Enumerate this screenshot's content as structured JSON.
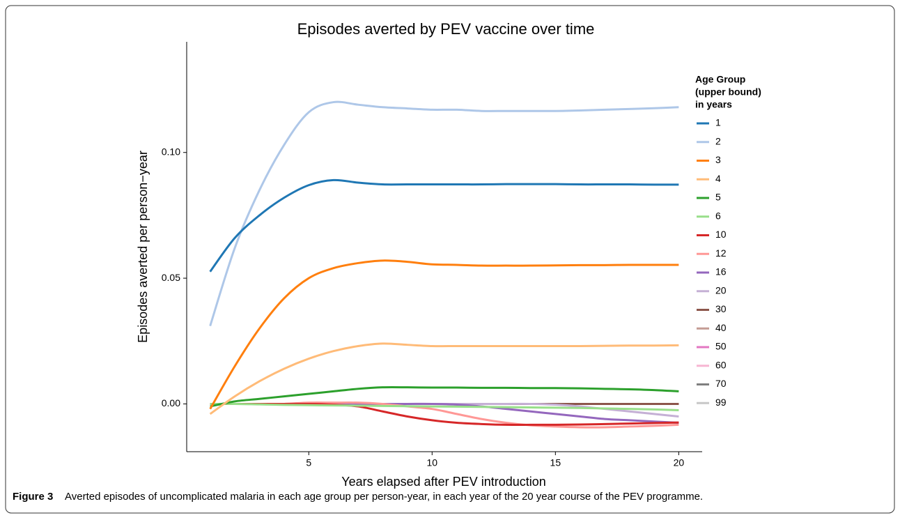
{
  "chart_data": {
    "type": "line",
    "title": "Episodes averted by PEV vaccine over time",
    "x_label": "Years elapsed after PEV introduction",
    "y_label": "Episodes averted per person−year",
    "legend_title": [
      "Age Group",
      "(upper bound)",
      "in years"
    ],
    "legend_position": "right",
    "x": [
      1,
      2,
      3,
      4,
      5,
      6,
      7,
      8,
      9,
      10,
      11,
      12,
      13,
      14,
      15,
      16,
      17,
      18,
      19,
      20
    ],
    "xlim": [
      0.05,
      20.95
    ],
    "xticks": [
      5,
      10,
      15,
      20
    ],
    "ylim": [
      -0.019,
      0.144
    ],
    "yticks": [
      {
        "value": 0,
        "label": "0.00"
      },
      {
        "value": 0.05,
        "label": "0.05"
      },
      {
        "value": 0.1,
        "label": "0.10"
      }
    ],
    "series": [
      {
        "name": "1",
        "color": "#1f77b4",
        "values": [
          0.0526,
          0.066,
          0.075,
          0.082,
          0.087,
          0.089,
          0.088,
          0.0873,
          0.0873,
          0.0873,
          0.0873,
          0.0873,
          0.0874,
          0.0874,
          0.0874,
          0.0873,
          0.0873,
          0.0873,
          0.0872,
          0.0872
        ]
      },
      {
        "name": "2",
        "color": "#aec7e8",
        "values": [
          0.031,
          0.062,
          0.085,
          0.103,
          0.116,
          0.12,
          0.119,
          0.118,
          0.1175,
          0.117,
          0.117,
          0.1165,
          0.1165,
          0.1165,
          0.1165,
          0.1167,
          0.117,
          0.1173,
          0.1176,
          0.118
        ]
      },
      {
        "name": "3",
        "color": "#ff7f0e",
        "values": [
          -0.002,
          0.015,
          0.03,
          0.042,
          0.05,
          0.054,
          0.056,
          0.057,
          0.0565,
          0.0555,
          0.0553,
          0.055,
          0.055,
          0.055,
          0.0551,
          0.0552,
          0.0552,
          0.0553,
          0.0553,
          0.0553
        ]
      },
      {
        "name": "4",
        "color": "#ffbb78",
        "values": [
          -0.004,
          0.003,
          0.009,
          0.014,
          0.018,
          0.021,
          0.023,
          0.024,
          0.0235,
          0.023,
          0.023,
          0.023,
          0.023,
          0.023,
          0.023,
          0.023,
          0.0231,
          0.0232,
          0.0232,
          0.0233
        ]
      },
      {
        "name": "5",
        "color": "#2ca02c",
        "values": [
          -0.001,
          0.001,
          0.002,
          0.003,
          0.004,
          0.005,
          0.006,
          0.0066,
          0.0066,
          0.0065,
          0.0065,
          0.0064,
          0.0064,
          0.0063,
          0.0063,
          0.0062,
          0.006,
          0.0058,
          0.0055,
          0.005
        ]
      },
      {
        "name": "6",
        "color": "#98df8a",
        "values": [
          0,
          0,
          -0.0002,
          -0.0004,
          -0.0005,
          -0.0006,
          -0.0007,
          -0.0008,
          -0.0009,
          -0.001,
          -0.0011,
          -0.0012,
          -0.0013,
          -0.0014,
          -0.0015,
          -0.0016,
          -0.0018,
          -0.002,
          -0.0022,
          -0.0025
        ]
      },
      {
        "name": "10",
        "color": "#d62728",
        "values": [
          0,
          0,
          0,
          0,
          0,
          -0.0003,
          -0.001,
          -0.003,
          -0.005,
          -0.0065,
          -0.0075,
          -0.008,
          -0.0083,
          -0.0083,
          -0.0083,
          -0.0082,
          -0.008,
          -0.0078,
          -0.0076,
          -0.0074
        ]
      },
      {
        "name": "12",
        "color": "#ff9896",
        "values": [
          0,
          0,
          0,
          0,
          0.0005,
          0.0005,
          0.0005,
          0,
          -0.001,
          -0.002,
          -0.004,
          -0.006,
          -0.0075,
          -0.0085,
          -0.009,
          -0.0093,
          -0.0093,
          -0.009,
          -0.0087,
          -0.0083
        ]
      },
      {
        "name": "16",
        "color": "#9467bd",
        "values": [
          0,
          0,
          0,
          0,
          0,
          0,
          0,
          0,
          0,
          0,
          -0.0003,
          -0.001,
          -0.002,
          -0.003,
          -0.004,
          -0.005,
          -0.006,
          -0.0065,
          -0.007,
          -0.0075
        ]
      },
      {
        "name": "20",
        "color": "#c5b0d5",
        "values": [
          0,
          0,
          0,
          0,
          0,
          0,
          0,
          0,
          0,
          0,
          0,
          0,
          0,
          0,
          -0.0003,
          -0.001,
          -0.002,
          -0.003,
          -0.004,
          -0.005
        ]
      },
      {
        "name": "30",
        "color": "#8c564b",
        "values": [
          0,
          0,
          0,
          0,
          0,
          0,
          0,
          0,
          0,
          0,
          0,
          0,
          0,
          0,
          0,
          0,
          0,
          0,
          0,
          0
        ]
      },
      {
        "name": "40",
        "color": "#c49c94",
        "values": [
          0,
          0,
          0,
          0,
          0,
          0,
          0,
          0,
          0,
          0,
          0,
          0,
          0,
          0,
          0,
          0,
          0,
          0,
          0,
          0
        ]
      },
      {
        "name": "50",
        "color": "#e377c2",
        "values": [
          0,
          0,
          0,
          0,
          0,
          0,
          0,
          0,
          0,
          0,
          0,
          0,
          0,
          0,
          0,
          0,
          0,
          0,
          0,
          0
        ]
      },
      {
        "name": "60",
        "color": "#f7b6d2",
        "values": [
          0,
          0,
          0,
          0,
          0,
          0,
          0,
          0,
          0,
          0,
          0,
          0,
          0,
          0,
          0,
          0,
          0,
          0,
          0,
          0
        ]
      },
      {
        "name": "70",
        "color": "#7f7f7f",
        "values": [
          0,
          0,
          0,
          0,
          0,
          0,
          0,
          0,
          0,
          0,
          0,
          0,
          0,
          0,
          0,
          0,
          0,
          0,
          0,
          0
        ]
      },
      {
        "name": "99",
        "color": "#c7c7c7",
        "values": [
          0,
          0,
          0,
          0,
          0,
          0,
          0,
          0,
          0,
          0,
          0,
          0,
          0,
          0,
          0,
          0,
          0,
          0,
          0,
          0
        ]
      }
    ]
  },
  "figure": {
    "label": "Figure 3",
    "caption": "Averted episodes of uncomplicated malaria in each age group per person-year, in each year of the 20 year course of the PEV programme."
  }
}
